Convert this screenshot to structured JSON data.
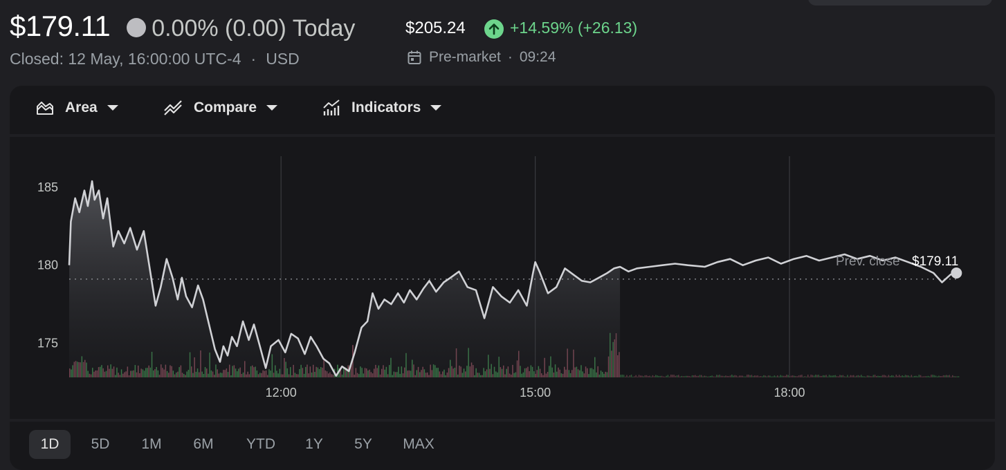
{
  "quote": {
    "price": "$179.11",
    "change_today": "0.00% (0.00) Today",
    "closed_label": "Closed: 12 May, 16:00:00 UTC-4",
    "separator": "·",
    "currency": "USD"
  },
  "premarket": {
    "price": "$205.24",
    "change": "+14.59% (+26.13)",
    "label": "Pre-market",
    "separator": "·",
    "time": "09:24"
  },
  "toolbar": {
    "area_label": "Area",
    "compare_label": "Compare",
    "indicators_label": "Indicators"
  },
  "ranges": {
    "items": [
      "1D",
      "5D",
      "1M",
      "6M",
      "YTD",
      "1Y",
      "5Y",
      "MAX"
    ],
    "selected": "1D"
  },
  "colors": {
    "line": "#d0d1d5",
    "positive": "#6dd58c",
    "volume_up": "#3f8a4f",
    "volume_down": "#8b4e5c"
  },
  "chart_data": {
    "type": "area",
    "x_axis_unit": "hour (UTC-4)",
    "x_ticks": [
      "12:00",
      "15:00",
      "18:00"
    ],
    "x_tick_values": [
      12,
      15,
      18
    ],
    "y_ticks": [
      185,
      180,
      175
    ],
    "ylim": [
      172.8,
      187
    ],
    "xlim": [
      9.5,
      20
    ],
    "regular_session_end": 16,
    "reference_line": {
      "label": "Prev. close",
      "value_label": "$179.11",
      "value": 179.11
    },
    "series": [
      {
        "x": [
          9.5,
          9.52,
          9.57,
          9.62,
          9.68,
          9.72,
          9.77,
          9.8,
          9.85,
          9.9,
          9.95,
          10.02,
          10.08,
          10.15,
          10.22,
          10.3,
          10.38,
          10.45,
          10.52,
          10.58,
          10.65,
          10.72,
          10.78,
          10.83,
          10.88,
          10.95,
          11.02,
          11.08,
          11.15,
          11.22,
          11.28,
          11.32,
          11.37,
          11.42,
          11.48,
          11.55,
          11.62,
          11.68,
          11.75,
          11.82,
          11.88,
          11.97,
          12.05,
          12.12,
          12.2,
          12.28,
          12.35,
          12.42,
          12.5,
          12.57,
          12.65,
          12.72,
          12.8,
          12.87,
          12.95,
          13.02,
          13.08,
          13.15,
          13.22,
          13.3,
          13.38,
          13.45,
          13.52,
          13.6,
          13.68,
          13.75,
          13.83,
          13.92,
          14.0,
          14.1,
          14.2,
          14.3,
          14.4,
          14.5,
          14.6,
          14.7,
          14.8,
          14.9,
          14.97,
          15.0,
          15.05,
          15.15,
          15.25,
          15.35,
          15.45,
          15.55,
          15.65,
          15.75,
          15.85,
          15.93,
          16.0,
          16.1,
          16.2,
          16.35,
          16.5,
          16.65,
          16.8,
          17.0,
          17.15,
          17.3,
          17.45,
          17.6,
          17.75,
          17.9,
          18.05,
          18.2,
          18.35,
          18.5,
          18.65,
          18.8,
          18.95,
          19.1,
          19.25,
          19.4,
          19.55,
          19.7,
          19.8,
          19.9,
          19.97
        ],
        "y": [
          180.0,
          182.8,
          184.3,
          183.4,
          184.8,
          183.8,
          185.4,
          184.2,
          184.8,
          183.0,
          184.3,
          181.2,
          182.2,
          181.4,
          182.4,
          181.0,
          182.2,
          179.8,
          177.4,
          178.6,
          180.4,
          179.2,
          177.8,
          179.2,
          178.0,
          177.3,
          178.7,
          177.8,
          176.2,
          174.6,
          173.8,
          174.8,
          174.2,
          175.4,
          174.8,
          176.4,
          175.2,
          176.2,
          174.8,
          173.4,
          174.8,
          175.2,
          174.4,
          175.6,
          175.3,
          174.3,
          175.4,
          174.8,
          174.0,
          173.7,
          172.9,
          173.5,
          173.2,
          174.4,
          176.0,
          176.4,
          178.2,
          177.2,
          177.8,
          177.5,
          178.2,
          177.6,
          178.4,
          177.8,
          178.5,
          179.0,
          178.3,
          178.9,
          179.2,
          179.6,
          178.6,
          178.4,
          176.6,
          178.6,
          178.0,
          177.6,
          178.4,
          177.4,
          179.4,
          180.2,
          179.6,
          178.2,
          178.6,
          179.8,
          179.4,
          179.0,
          178.9,
          179.2,
          179.5,
          179.8,
          179.9,
          179.6,
          179.8,
          179.9,
          180.0,
          180.1,
          180.0,
          179.9,
          180.2,
          180.4,
          180.0,
          180.3,
          180.5,
          180.1,
          180.4,
          180.6,
          180.3,
          180.5,
          180.7,
          180.4,
          180.6,
          180.3,
          180.5,
          180.2,
          179.9,
          179.5,
          178.9,
          179.4,
          179.5
        ]
      }
    ]
  }
}
